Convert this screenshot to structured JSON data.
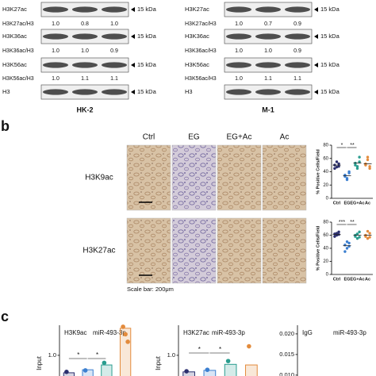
{
  "western_blots": [
    {
      "cell_line": "HK-2",
      "marker": "15 kDa",
      "bands": [
        "H3K27ac",
        "H3K36ac",
        "H3K56ac",
        "H3"
      ],
      "ratios": [
        {
          "label": "H3K27ac/H3",
          "values": [
            "1.0",
            "0.8",
            "1.0"
          ]
        },
        {
          "label": "H3K36ac/H3",
          "values": [
            "1.0",
            "1.0",
            "0.9"
          ]
        },
        {
          "label": "H3K56ac/H3",
          "values": [
            "1.0",
            "1.1",
            "1.1"
          ]
        }
      ]
    },
    {
      "cell_line": "M-1",
      "marker": "15 kDa",
      "bands": [
        "H3K27ac",
        "H3K36ac",
        "H3K56ac",
        "H3"
      ],
      "ratios": [
        {
          "label": "H3K27ac/H3",
          "values": [
            "1.0",
            "0.7",
            "0.9"
          ]
        },
        {
          "label": "H3K36ac/H3",
          "values": [
            "1.0",
            "1.0",
            "0.9"
          ]
        },
        {
          "label": "H3K56ac/H3",
          "values": [
            "1.0",
            "1.1",
            "1.1"
          ]
        }
      ]
    }
  ],
  "figure_b": {
    "label": "b",
    "columns": [
      "Ctrl",
      "EG",
      "EG+Ac",
      "Ac"
    ],
    "rows": [
      "H3K9ac",
      "H3K27ac"
    ],
    "scale_bar": "Scale bar: 200μm"
  },
  "figure_c": {
    "label": "c"
  },
  "chart_data": [
    {
      "type": "strip",
      "ylabel": "% Positive Cells/Field",
      "categories": [
        "Ctrl",
        "EG",
        "EG+Ac",
        "Ac"
      ],
      "colors": [
        "#2b2f6e",
        "#3b7fd0",
        "#2a9d8f",
        "#e38b3c"
      ],
      "values": [
        [
          50,
          47,
          52,
          45,
          55,
          48
        ],
        [
          33,
          28,
          38,
          35,
          30,
          40
        ],
        [
          53,
          48,
          62,
          50,
          45,
          55
        ],
        [
          52,
          58,
          45,
          50,
          62,
          48
        ]
      ],
      "means": [
        50,
        34,
        53,
        52
      ],
      "annotations": [
        "*",
        "**"
      ],
      "ylim": [
        0,
        80
      ],
      "yticks": [
        0,
        20,
        40,
        60,
        80
      ]
    },
    {
      "type": "strip",
      "ylabel": "% Positive Cells/Field",
      "categories": [
        "Ctrl",
        "EG",
        "EG+Ac",
        "Ac"
      ],
      "colors": [
        "#2b2f6e",
        "#3b7fd0",
        "#2a9d8f",
        "#e38b3c"
      ],
      "values": [
        [
          62,
          60,
          65,
          58,
          63,
          61
        ],
        [
          45,
          40,
          48,
          35,
          50,
          43
        ],
        [
          60,
          55,
          65,
          58,
          62,
          57
        ],
        [
          60,
          55,
          63,
          58,
          66,
          57
        ]
      ],
      "means": [
        61,
        44,
        60,
        60
      ],
      "annotations": [
        "***",
        "**"
      ],
      "ylim": [
        0,
        80
      ],
      "yticks": [
        0,
        20,
        40,
        60,
        80
      ]
    },
    {
      "type": "bar",
      "title": "H3K9ac",
      "subtitle": "miR-493-3p",
      "ylabel": "Input",
      "colors": [
        "#2b2f6e",
        "#3b7fd0",
        "#2a9d8f",
        "#e38b3c"
      ],
      "values": [
        0.42,
        0.52,
        0.68,
        1.9
      ],
      "points": [
        [
          0.45
        ],
        [
          0.5
        ],
        [
          0.75
        ],
        [
          1.95,
          1.7,
          1.45
        ]
      ],
      "annotations": [
        "*",
        "*"
      ],
      "ylim": [
        0.26,
        2.0
      ],
      "yticks": [
        {
          "value": 1,
          "label": "1.0"
        }
      ]
    },
    {
      "type": "bar",
      "title": "H3K27ac",
      "subtitle": "miR-493-3p",
      "ylabel": "Input",
      "colors": [
        "#2b2f6e",
        "#3b7fd0",
        "#2a9d8f",
        "#e38b3c"
      ],
      "values": [
        0.45,
        0.5,
        0.7,
        0.68
      ],
      "points": [
        [
          0.47
        ],
        [
          0.52
        ],
        [
          0.81
        ],
        [
          1.3
        ]
      ],
      "annotations": [
        "*",
        "*"
      ],
      "ylim": [
        0.26,
        2.0
      ],
      "yticks": [
        {
          "value": 1,
          "label": "1.0"
        }
      ]
    },
    {
      "type": "bar",
      "title": "IgG",
      "subtitle": "miR-493-3p",
      "ylim": [
        0.0094,
        0.0221
      ],
      "yticks": [
        {
          "value": 0.02,
          "label": "0.020"
        },
        {
          "value": 0.015,
          "label": "0.015"
        },
        {
          "value": 0.01,
          "label": "0.010"
        }
      ]
    }
  ]
}
